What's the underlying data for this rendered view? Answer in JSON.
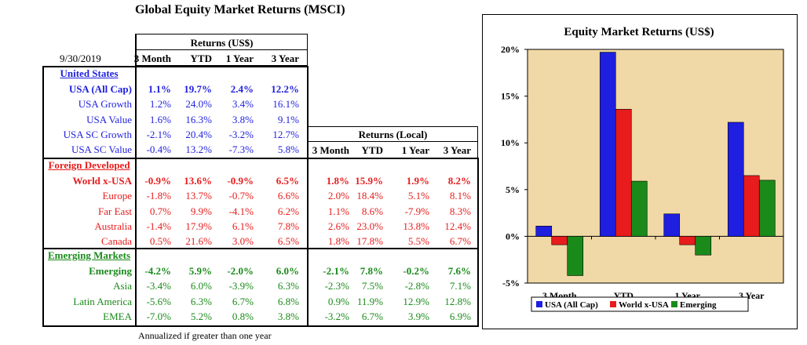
{
  "title": "Global Equity Market Returns (MSCI)",
  "date": "9/30/2019",
  "usd_header": "Returns (US$)",
  "local_header": "Returns (Local)",
  "columns": [
    "3 Month",
    "YTD",
    "1 Year",
    "3 Year"
  ],
  "footnote": "Annualized if greater than one year",
  "colors": {
    "usa": "#1f1fe0",
    "foreign": "#e81c1c",
    "emerging": "#1a8a1a",
    "chart_bg": "#f0d9a6"
  },
  "sections": [
    {
      "heading": "United States",
      "rows": [
        {
          "label": "USA (All Cap)",
          "bold": true,
          "usd": [
            "1.1%",
            "19.7%",
            "2.4%",
            "12.2%"
          ]
        },
        {
          "label": "USA Growth",
          "usd": [
            "1.2%",
            "24.0%",
            "3.4%",
            "16.1%"
          ]
        },
        {
          "label": "USA Value",
          "usd": [
            "1.6%",
            "16.3%",
            "3.8%",
            "9.1%"
          ]
        },
        {
          "label": "USA SC Growth",
          "usd": [
            "-2.1%",
            "20.4%",
            "-3.2%",
            "12.7%"
          ]
        },
        {
          "label": "USA SC Value",
          "usd": [
            "-0.4%",
            "13.2%",
            "-7.3%",
            "5.8%"
          ]
        }
      ]
    },
    {
      "heading": "Foreign Developed",
      "rows": [
        {
          "label": "World x-USA",
          "bold": true,
          "usd": [
            "-0.9%",
            "13.6%",
            "-0.9%",
            "6.5%"
          ],
          "local": [
            "1.8%",
            "15.9%",
            "1.9%",
            "8.2%"
          ]
        },
        {
          "label": "Europe",
          "usd": [
            "-1.8%",
            "13.7%",
            "-0.7%",
            "6.6%"
          ],
          "local": [
            "2.0%",
            "18.4%",
            "5.1%",
            "8.1%"
          ]
        },
        {
          "label": "Far East",
          "usd": [
            "0.7%",
            "9.9%",
            "-4.1%",
            "6.2%"
          ],
          "local": [
            "1.1%",
            "8.6%",
            "-7.9%",
            "8.3%"
          ]
        },
        {
          "label": "Australia",
          "usd": [
            "-1.4%",
            "17.9%",
            "6.1%",
            "7.8%"
          ],
          "local": [
            "2.6%",
            "23.0%",
            "13.8%",
            "12.4%"
          ]
        },
        {
          "label": "Canada",
          "usd": [
            "0.5%",
            "21.6%",
            "3.0%",
            "6.5%"
          ],
          "local": [
            "1.8%",
            "17.8%",
            "5.5%",
            "6.7%"
          ]
        }
      ]
    },
    {
      "heading": "Emerging Markets",
      "rows": [
        {
          "label": "Emerging",
          "bold": true,
          "usd": [
            "-4.2%",
            "5.9%",
            "-2.0%",
            "6.0%"
          ],
          "local": [
            "-2.1%",
            "7.8%",
            "-0.2%",
            "7.6%"
          ]
        },
        {
          "label": "Asia",
          "usd": [
            "-3.4%",
            "6.0%",
            "-3.9%",
            "6.3%"
          ],
          "local": [
            "-2.3%",
            "7.5%",
            "-2.8%",
            "7.1%"
          ]
        },
        {
          "label": "Latin America",
          "usd": [
            "-5.6%",
            "6.3%",
            "6.7%",
            "6.8%"
          ],
          "local": [
            "0.9%",
            "11.9%",
            "12.9%",
            "12.8%"
          ]
        },
        {
          "label": "EMEA",
          "usd": [
            "-7.0%",
            "5.2%",
            "0.8%",
            "3.8%"
          ],
          "local": [
            "-3.2%",
            "6.7%",
            "3.9%",
            "6.9%"
          ]
        }
      ]
    }
  ],
  "chart_data": {
    "type": "bar",
    "title": "Equity Market Returns (US$)",
    "categories": [
      "3 Month",
      "YTD",
      "1 Year",
      "3 Year"
    ],
    "series": [
      {
        "name": "USA (All Cap)",
        "color": "#1f1fe0",
        "values": [
          1.1,
          19.7,
          2.4,
          12.2
        ]
      },
      {
        "name": "World x-USA",
        "color": "#e81c1c",
        "values": [
          -0.9,
          13.6,
          -0.9,
          6.5
        ]
      },
      {
        "name": "Emerging",
        "color": "#1a8a1a",
        "values": [
          -4.2,
          5.9,
          -2.0,
          6.0
        ]
      }
    ],
    "ylim": [
      -5,
      20
    ],
    "yticks": [
      "-5%",
      "0%",
      "5%",
      "10%",
      "15%",
      "20%"
    ],
    "legend_position": "bottom",
    "grid": false
  }
}
